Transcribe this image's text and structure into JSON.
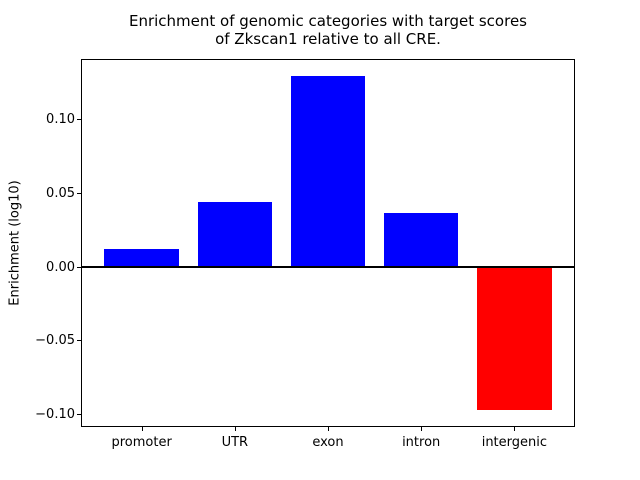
{
  "figure": {
    "title": "Enrichment of genomic categories with target scores\nof Zkscan1 relative to all CRE.",
    "ylabel": "Enrichment (log10)"
  },
  "colors": {
    "positive_bar": "#0000ff",
    "negative_bar": "#ff0000",
    "axis": "#000000",
    "background": "#ffffff"
  },
  "chart_data": {
    "type": "bar",
    "title": "Enrichment of genomic categories with target scores of Zkscan1 relative to all CRE.",
    "xlabel": "",
    "ylabel": "Enrichment (log10)",
    "categories": [
      "promoter",
      "UTR",
      "exon",
      "intron",
      "intergenic"
    ],
    "values": [
      0.012,
      0.044,
      0.129,
      0.036,
      -0.097
    ],
    "bar_colors": [
      "#0000ff",
      "#0000ff",
      "#0000ff",
      "#0000ff",
      "#ff0000"
    ],
    "bar_width": 0.8,
    "xlim": [
      -0.64,
      4.64
    ],
    "ylim": [
      -0.108,
      0.14
    ],
    "yticks": [
      -0.1,
      -0.05,
      0.0,
      0.05,
      0.1
    ],
    "ytick_labels": [
      "−0.10",
      "−0.05",
      "0.00",
      "0.05",
      "0.10"
    ],
    "zero_line": true,
    "grid": false,
    "legend": null
  }
}
